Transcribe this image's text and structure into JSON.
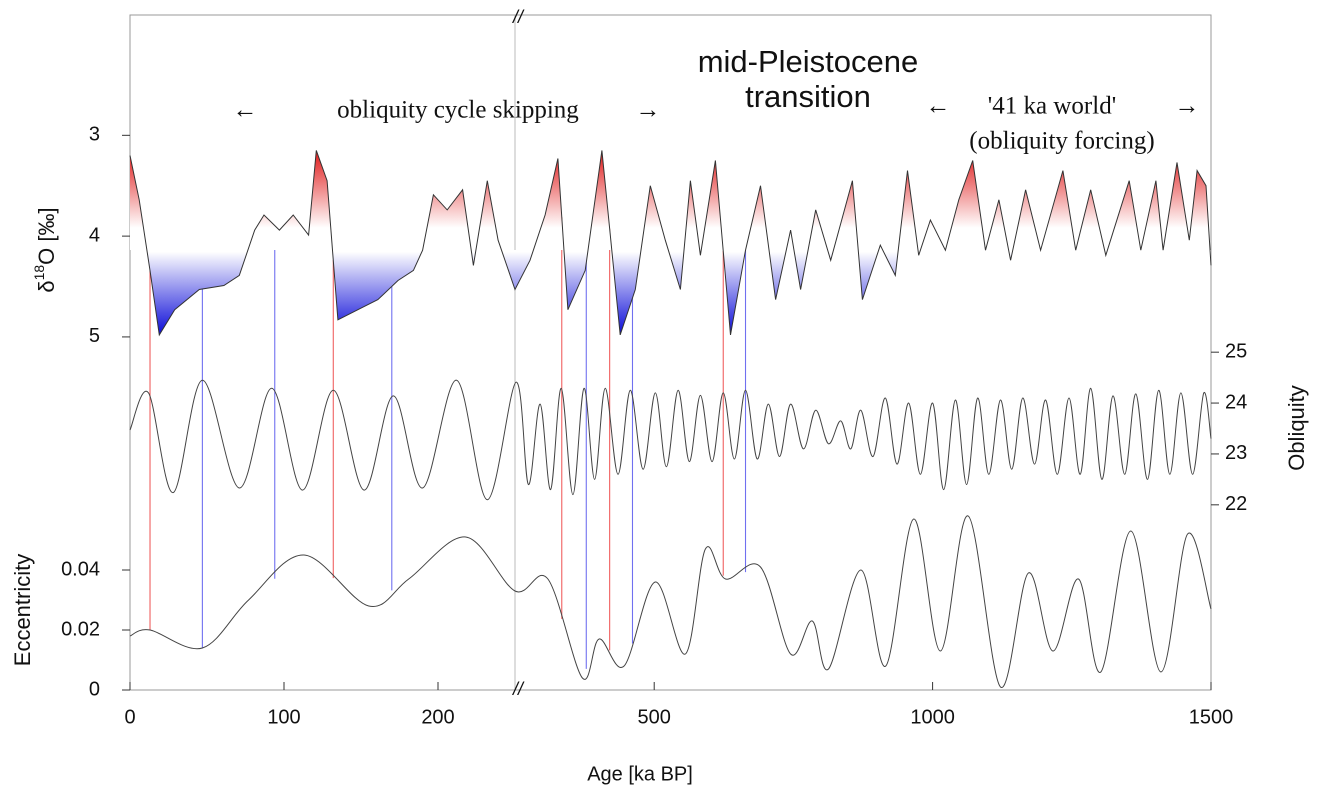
{
  "chart_data": [
    {
      "type": "line",
      "y_label_parts": [
        "δ",
        "18",
        "O [‰]"
      ],
      "ylim": [
        5.1,
        2.6
      ],
      "yticks": [
        3,
        4,
        5
      ],
      "color": "#333333",
      "fill_colors": [
        "#e01818",
        "#ffffff",
        "#0a0ad8"
      ],
      "x": [
        0,
        6,
        13,
        19,
        29,
        45,
        61,
        71,
        81,
        87,
        97,
        106,
        116,
        121,
        128,
        135,
        148,
        161,
        174,
        184,
        190,
        197,
        206,
        216,
        223,
        232,
        239,
        250,
        277,
        304,
        327,
        345,
        376,
        406,
        439,
        466,
        493,
        520,
        547,
        565,
        583,
        610,
        637,
        664,
        691,
        718,
        745,
        763,
        790,
        817,
        856,
        874,
        906,
        933,
        955,
        975,
        996,
        1023,
        1047,
        1072,
        1095,
        1119,
        1140,
        1167,
        1194,
        1234,
        1257,
        1284,
        1311,
        1353,
        1374,
        1401,
        1414,
        1439,
        1461,
        1475,
        1491,
        1500
      ],
      "values": [
        3.2,
        3.64,
        4.34,
        4.98,
        4.73,
        4.53,
        4.49,
        4.39,
        3.94,
        3.79,
        3.94,
        3.79,
        3.99,
        3.15,
        3.45,
        4.83,
        4.73,
        4.63,
        4.44,
        4.34,
        4.14,
        3.59,
        3.74,
        3.54,
        4.29,
        3.45,
        4.04,
        4.53,
        4.24,
        3.79,
        3.23,
        4.73,
        4.34,
        3.15,
        4.98,
        4.53,
        3.5,
        4.04,
        4.53,
        3.45,
        4.19,
        3.25,
        4.98,
        4.14,
        3.5,
        4.63,
        3.94,
        4.53,
        3.74,
        4.24,
        3.45,
        4.63,
        4.09,
        4.39,
        3.35,
        4.19,
        3.84,
        4.14,
        3.64,
        3.25,
        4.14,
        3.64,
        4.24,
        3.54,
        4.14,
        3.35,
        4.14,
        3.54,
        4.19,
        3.45,
        4.14,
        3.45,
        4.14,
        3.27,
        4.04,
        3.35,
        3.5,
        4.29
      ],
      "annotations": [
        "←",
        "obliquity cycle skipping",
        "→",
        "mid-Pleistocene",
        "transition",
        "←",
        "'41 ka world'",
        "→",
        "(obliquity forcing)"
      ],
      "links": [
        {
          "age": 13,
          "color": "#f06060"
        },
        {
          "age": 47,
          "color": "#7070f0"
        },
        {
          "age": 94,
          "color": "#7070f0"
        },
        {
          "age": 132,
          "color": "#f06060"
        },
        {
          "age": 170,
          "color": "#7070f0"
        },
        {
          "age": 334,
          "color": "#f06060"
        },
        {
          "age": 378,
          "color": "#7070f0"
        },
        {
          "age": 420,
          "color": "#f06060"
        },
        {
          "age": 461,
          "color": "#7070f0"
        },
        {
          "age": 624,
          "color": "#f06060"
        },
        {
          "age": 664,
          "color": "#7070f0"
        }
      ]
    },
    {
      "type": "line",
      "y_label": "Obliquity",
      "y_axis_side": "right",
      "ylim": [
        21.8,
        25.2
      ],
      "yticks": [
        22,
        23,
        24,
        25
      ],
      "color": "#444444",
      "x": [
        0,
        12,
        28,
        47,
        71,
        92,
        112,
        132,
        152,
        171,
        190,
        212,
        232,
        252,
        274,
        295,
        314,
        333,
        354,
        374,
        393,
        412,
        435,
        457,
        480,
        502,
        522,
        543,
        563,
        583,
        604,
        624,
        644,
        664,
        685,
        705,
        725,
        745,
        768,
        790,
        813,
        835,
        853,
        871,
        893,
        915,
        936,
        957,
        978,
        1000,
        1020,
        1041,
        1061,
        1081,
        1101,
        1122,
        1142,
        1162,
        1183,
        1203,
        1224,
        1245,
        1265,
        1284,
        1304,
        1324,
        1345,
        1365,
        1386,
        1406,
        1426,
        1446,
        1467,
        1487,
        1500
      ],
      "values": [
        23.47,
        24.2,
        22.24,
        24.45,
        22.33,
        24.29,
        22.29,
        24.25,
        22.29,
        24.14,
        22.33,
        24.45,
        22.1,
        24.41,
        22.4,
        23.98,
        22.3,
        24.29,
        22.2,
        24.29,
        22.5,
        24.29,
        22.6,
        24.25,
        22.7,
        24.2,
        22.75,
        24.25,
        22.85,
        24.15,
        22.85,
        24.2,
        22.9,
        24.25,
        22.9,
        23.98,
        22.95,
        23.98,
        23.1,
        23.86,
        23.2,
        23.65,
        23.1,
        23.86,
        22.95,
        24.1,
        22.8,
        24.0,
        22.6,
        24.0,
        22.3,
        24.06,
        22.4,
        24.1,
        22.6,
        24.06,
        22.7,
        24.1,
        22.8,
        24.06,
        22.6,
        24.1,
        22.6,
        24.29,
        22.5,
        24.14,
        22.6,
        24.18,
        22.5,
        24.25,
        22.6,
        24.2,
        22.6,
        24.2,
        23.3
      ]
    },
    {
      "type": "line",
      "y_label": "Eccentricity",
      "ylim": [
        0,
        0.06
      ],
      "yticks": [
        0,
        0.02,
        0.04
      ],
      "color": "#444444",
      "x": [
        0,
        13,
        47,
        77,
        113,
        155,
        181,
        218,
        250,
        309,
        371,
        401,
        446,
        502,
        556,
        592,
        628,
        691,
        745,
        784,
        813,
        871,
        916,
        966,
        1014,
        1064,
        1122,
        1172,
        1216,
        1262,
        1302,
        1356,
        1410,
        1458,
        1500
      ],
      "values": [
        0.018,
        0.02,
        0.014,
        0.03,
        0.045,
        0.028,
        0.037,
        0.051,
        0.033,
        0.037,
        0.004,
        0.017,
        0.008,
        0.036,
        0.012,
        0.047,
        0.037,
        0.041,
        0.012,
        0.023,
        0.007,
        0.04,
        0.008,
        0.057,
        0.013,
        0.058,
        0.001,
        0.039,
        0.013,
        0.037,
        0.006,
        0.053,
        0.006,
        0.052,
        0.027
      ],
      "xlim": [
        0,
        1500
      ],
      "x_break": 250,
      "break_label": "//",
      "xticks": [
        0,
        100,
        200,
        500,
        1000,
        1500
      ],
      "x_label": "Age [ka BP]"
    }
  ]
}
